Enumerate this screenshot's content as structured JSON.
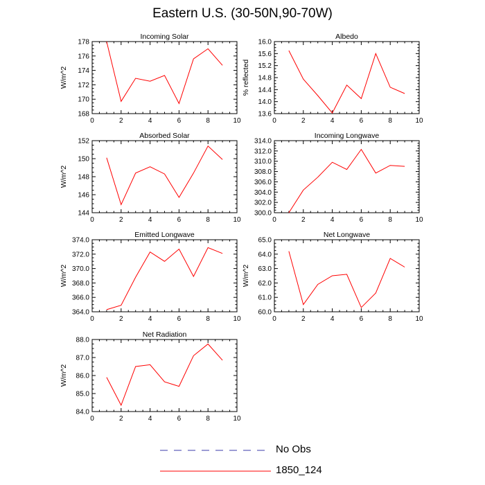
{
  "title": "Eastern U.S. (30-50N,90-70W)",
  "legend": [
    {
      "label": "No Obs",
      "color": "#3a3aa8",
      "style": "dashed"
    },
    {
      "label": "1850_124",
      "color": "#ff0000",
      "style": "solid"
    }
  ],
  "chart_data": [
    {
      "type": "line",
      "title": "Incoming Solar",
      "ylabel": "W/m^2",
      "xlim": [
        0,
        10
      ],
      "xticks": [
        "0",
        "2",
        "4",
        "6",
        "8",
        "10"
      ],
      "ylim": [
        168,
        178
      ],
      "yticks": [
        "168",
        "170",
        "172",
        "174",
        "176",
        "178"
      ],
      "series": [
        {
          "name": "1850_124",
          "color": "#ff0000",
          "x": [
            1,
            2,
            3,
            4,
            5,
            6,
            7,
            8,
            9
          ],
          "y": [
            178.0,
            169.7,
            172.9,
            172.5,
            173.3,
            169.4,
            175.6,
            177.0,
            174.7
          ]
        }
      ]
    },
    {
      "type": "line",
      "title": "Albedo",
      "ylabel": "% reflected",
      "xlim": [
        0,
        10
      ],
      "xticks": [
        "0",
        "2",
        "4",
        "6",
        "8",
        "10"
      ],
      "ylim": [
        13.6,
        16.0
      ],
      "yticks": [
        "13.6",
        "14.0",
        "14.4",
        "14.8",
        "15.2",
        "15.6",
        "16.0"
      ],
      "series": [
        {
          "name": "1850_124",
          "color": "#ff0000",
          "x": [
            1,
            2,
            3,
            4,
            5,
            6,
            7,
            8,
            9
          ],
          "y": [
            15.7,
            14.75,
            14.2,
            13.62,
            14.55,
            14.1,
            15.6,
            14.48,
            14.27
          ]
        }
      ]
    },
    {
      "type": "line",
      "title": "Absorbed Solar",
      "ylabel": "W/m^2",
      "xlim": [
        0,
        10
      ],
      "xticks": [
        "0",
        "2",
        "4",
        "6",
        "8",
        "10"
      ],
      "ylim": [
        144,
        152
      ],
      "yticks": [
        "144",
        "146",
        "148",
        "150",
        "152"
      ],
      "series": [
        {
          "name": "1850_124",
          "color": "#ff0000",
          "x": [
            1,
            2,
            3,
            4,
            5,
            6,
            7,
            8,
            9
          ],
          "y": [
            150.1,
            144.9,
            148.4,
            149.1,
            148.3,
            145.7,
            148.4,
            151.4,
            149.9
          ]
        }
      ]
    },
    {
      "type": "line",
      "title": "Incoming Longwave",
      "ylabel": "",
      "xlim": [
        0,
        10
      ],
      "xticks": [
        "0",
        "2",
        "4",
        "6",
        "8",
        "10"
      ],
      "ylim": [
        300,
        314
      ],
      "yticks": [
        "300.0",
        "302.0",
        "304.0",
        "306.0",
        "308.0",
        "310.0",
        "312.0",
        "314.0"
      ],
      "series": [
        {
          "name": "1850_124",
          "color": "#ff0000",
          "x": [
            1,
            2,
            3,
            4,
            5,
            6,
            7,
            8,
            9
          ],
          "y": [
            300.0,
            304.4,
            306.9,
            309.8,
            308.4,
            312.3,
            307.7,
            309.2,
            309.0
          ]
        }
      ]
    },
    {
      "type": "line",
      "title": "Emitted Longwave",
      "ylabel": "W/m^2",
      "xlim": [
        0,
        10
      ],
      "xticks": [
        "0",
        "2",
        "4",
        "6",
        "8",
        "10"
      ],
      "ylim": [
        364,
        374
      ],
      "yticks": [
        "364.0",
        "366.0",
        "368.0",
        "370.0",
        "372.0",
        "374.0"
      ],
      "series": [
        {
          "name": "1850_124",
          "color": "#ff0000",
          "x": [
            1,
            2,
            3,
            4,
            5,
            6,
            7,
            8,
            9
          ],
          "y": [
            364.3,
            364.9,
            368.8,
            372.3,
            371.0,
            372.7,
            368.9,
            372.9,
            372.1
          ]
        }
      ]
    },
    {
      "type": "line",
      "title": "Net Longwave",
      "ylabel": "W/m^2",
      "xlim": [
        0,
        10
      ],
      "xticks": [
        "0",
        "2",
        "4",
        "6",
        "8",
        "10"
      ],
      "ylim": [
        60,
        65
      ],
      "yticks": [
        "60.0",
        "61.0",
        "62.0",
        "63.0",
        "64.0",
        "65.0"
      ],
      "series": [
        {
          "name": "1850_124",
          "color": "#ff0000",
          "x": [
            1,
            2,
            3,
            4,
            5,
            6,
            7,
            8,
            9
          ],
          "y": [
            64.2,
            60.5,
            61.9,
            62.5,
            62.6,
            60.3,
            61.3,
            63.7,
            63.1
          ]
        }
      ]
    },
    {
      "type": "line",
      "title": "Net Radiation",
      "ylabel": "W/m^2",
      "xlim": [
        0,
        10
      ],
      "xticks": [
        "0",
        "2",
        "4",
        "6",
        "8",
        "10"
      ],
      "ylim": [
        84,
        88
      ],
      "yticks": [
        "84.0",
        "85.0",
        "86.0",
        "87.0",
        "88.0"
      ],
      "series": [
        {
          "name": "1850_124",
          "color": "#ff0000",
          "x": [
            1,
            2,
            3,
            4,
            5,
            6,
            7,
            8,
            9
          ],
          "y": [
            85.9,
            84.35,
            86.5,
            86.6,
            85.65,
            85.4,
            87.1,
            87.75,
            86.85
          ]
        }
      ]
    }
  ]
}
